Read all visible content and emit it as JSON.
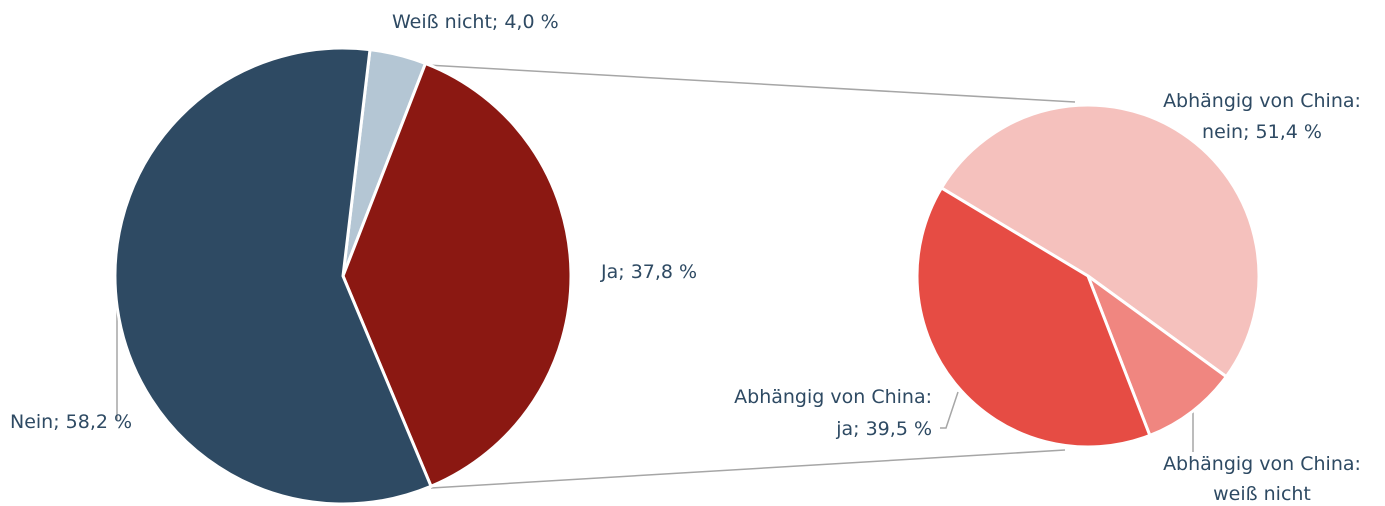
{
  "chart_data": [
    {
      "type": "pie",
      "values": [
        4.0,
        37.8,
        58.2
      ],
      "value_labels": [
        "Weiß nicht; 4,0 %",
        "Ja; 37,8 %",
        "Nein; 58,2 %"
      ],
      "colors": [
        "#b4c6d4",
        "#8b1812",
        "#2e4a63"
      ]
    },
    {
      "type": "pie",
      "values": [
        51.4,
        9.1,
        39.5
      ],
      "value_labels": [
        [
          "Abhängig von China:",
          "nein; 51,4 %"
        ],
        [
          "Abhängig von China:",
          "weiß nicht"
        ],
        [
          "Abhängig von China:",
          "ja; 39,5 %"
        ]
      ],
      "colors": [
        "#f5c1bd",
        "#f08680",
        "#e64c44"
      ]
    }
  ]
}
